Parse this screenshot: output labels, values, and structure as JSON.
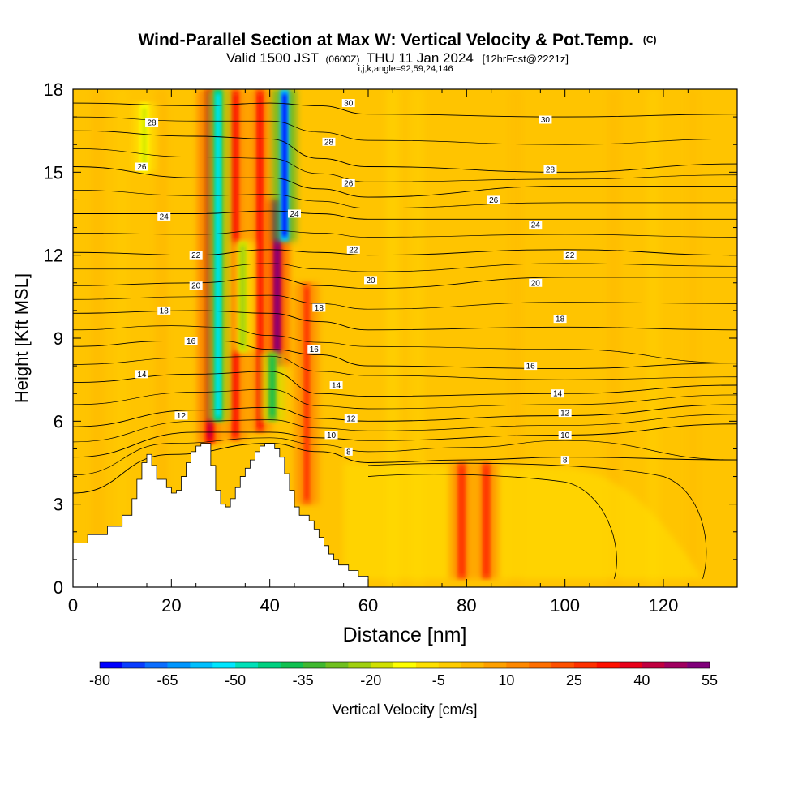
{
  "chart_data": {
    "type": "heatmap",
    "title": "Wind-Parallel Section at Max W: Vertical Velocity & Pot.Temp.",
    "title_mark": "(C)",
    "subtitle": {
      "valid": "Valid 1500 JST",
      "zulu": "(0600Z)",
      "date": "THU 11 Jan 2024",
      "fcst": "[12hrFcst@2221z]"
    },
    "indices": "i,j,k,angle=92,59,24,146",
    "xlabel": "Distance [nm]",
    "ylabel": "Height [Kft MSL]",
    "xlim": [
      0,
      135
    ],
    "ylim": [
      0,
      18
    ],
    "xticks": [
      0,
      20,
      40,
      60,
      80,
      100,
      120
    ],
    "yticks": [
      0,
      3,
      6,
      9,
      12,
      15,
      18
    ],
    "colorbar": {
      "label": "Vertical Velocity [cm/s]",
      "ticks": [
        -80,
        -65,
        -50,
        -35,
        -20,
        -5,
        10,
        25,
        40,
        55
      ],
      "min": -80,
      "max": 55,
      "step": 5,
      "colors": [
        "#0000ff",
        "#0a3dff",
        "#0c6eff",
        "#0096ff",
        "#00bfff",
        "#00e6ff",
        "#00e0b8",
        "#00d080",
        "#10c050",
        "#40b830",
        "#70c020",
        "#a0d010",
        "#d0e000",
        "#ffff00",
        "#ffe000",
        "#ffcc00",
        "#ffb800",
        "#ffa000",
        "#ff8800",
        "#ff6e00",
        "#ff5000",
        "#ff3000",
        "#ff1000",
        "#e8001a",
        "#c00040",
        "#a00060",
        "#80007a"
      ]
    },
    "terrain": [
      [
        0,
        1.6
      ],
      [
        3,
        1.9
      ],
      [
        7,
        2.2
      ],
      [
        10,
        2.6
      ],
      [
        12,
        3.2
      ],
      [
        13,
        3.9
      ],
      [
        14,
        4.5
      ],
      [
        15,
        4.8
      ],
      [
        16,
        4.4
      ],
      [
        17,
        3.9
      ],
      [
        19,
        3.6
      ],
      [
        20,
        3.4
      ],
      [
        21,
        3.5
      ],
      [
        22,
        4.0
      ],
      [
        23,
        4.5
      ],
      [
        24,
        4.9
      ],
      [
        25,
        5.1
      ],
      [
        26,
        5.2
      ],
      [
        27,
        5.2
      ],
      [
        28,
        4.4
      ],
      [
        29,
        3.5
      ],
      [
        30,
        3.0
      ],
      [
        31,
        2.9
      ],
      [
        32,
        3.2
      ],
      [
        33,
        3.6
      ],
      [
        34,
        4.0
      ],
      [
        35,
        4.3
      ],
      [
        36,
        4.6
      ],
      [
        37,
        4.9
      ],
      [
        38,
        5.1
      ],
      [
        39,
        5.2
      ],
      [
        40,
        5.2
      ],
      [
        41,
        5.0
      ],
      [
        42,
        4.7
      ],
      [
        43,
        4.1
      ],
      [
        44,
        3.5
      ],
      [
        45,
        2.9
      ],
      [
        46,
        2.6
      ],
      [
        47,
        2.6
      ],
      [
        48,
        2.4
      ],
      [
        49,
        2.1
      ],
      [
        50,
        1.8
      ],
      [
        51,
        1.5
      ],
      [
        52,
        1.2
      ],
      [
        53,
        1.0
      ],
      [
        54,
        0.8
      ],
      [
        56,
        0.6
      ],
      [
        58,
        0.4
      ],
      [
        60,
        0.3
      ]
    ],
    "updraft_bands": [
      {
        "x": 27.8,
        "ztop": 18,
        "zbot": 5.2,
        "w": 40
      },
      {
        "x": 33.0,
        "ztop": 18,
        "zbot": 5.3,
        "w": 30
      },
      {
        "x": 38.0,
        "ztop": 18,
        "zbot": 5.6,
        "w": 30
      },
      {
        "x": 41.5,
        "ztop": 14.0,
        "zbot": 8.0,
        "w": 55
      },
      {
        "x": 47.5,
        "ztop": 11.0,
        "zbot": 3.0,
        "w": 25
      },
      {
        "x": 79.0,
        "ztop": 4.5,
        "zbot": 0.3,
        "w": 28
      },
      {
        "x": 84.0,
        "ztop": 4.5,
        "zbot": 0.3,
        "w": 28
      }
    ],
    "downdraft_bands": [
      {
        "x": 29.5,
        "ztop": 18,
        "zbot": 6.0,
        "w": -55
      },
      {
        "x": 43.0,
        "ztop": 18,
        "zbot": 12.5,
        "w": -80
      },
      {
        "x": 40.5,
        "ztop": 8.5,
        "zbot": 6.0,
        "w": -40
      },
      {
        "x": 14.5,
        "ztop": 17.5,
        "zbot": 15.0,
        "w": -20
      },
      {
        "x": 34.5,
        "ztop": 12.5,
        "zbot": 8.5,
        "w": -25
      }
    ],
    "isentropes": [
      {
        "level": 8,
        "profile": [
          [
            0,
            3.4
          ],
          [
            20,
            4.8
          ],
          [
            40,
            5.2
          ],
          [
            50,
            4.9
          ],
          [
            60,
            4.5
          ],
          [
            80,
            4.6
          ],
          [
            100,
            4.7
          ],
          [
            135,
            4.6
          ]
        ]
      },
      {
        "level": 10,
        "profile": [
          [
            0,
            4.7
          ],
          [
            25,
            5.6
          ],
          [
            40,
            5.6
          ],
          [
            50,
            5.4
          ],
          [
            60,
            5.3
          ],
          [
            100,
            5.5
          ],
          [
            135,
            5.9
          ]
        ]
      },
      {
        "level": 12,
        "profile": [
          [
            0,
            5.8
          ],
          [
            25,
            6.4
          ],
          [
            40,
            6.5
          ],
          [
            50,
            6.1
          ],
          [
            60,
            6.0
          ],
          [
            100,
            6.2
          ],
          [
            135,
            6.6
          ]
        ]
      },
      {
        "level": 14,
        "profile": [
          [
            0,
            7.4
          ],
          [
            25,
            7.7
          ],
          [
            40,
            7.8
          ],
          [
            50,
            7.0
          ],
          [
            60,
            6.9
          ],
          [
            100,
            7.0
          ],
          [
            135,
            7.3
          ]
        ]
      },
      {
        "level": 16,
        "profile": [
          [
            0,
            8.7
          ],
          [
            20,
            8.9
          ],
          [
            30,
            8.9
          ],
          [
            40,
            8.6
          ],
          [
            50,
            8.4
          ],
          [
            60,
            8.0
          ],
          [
            100,
            7.9
          ],
          [
            135,
            8.1
          ]
        ]
      },
      {
        "level": 18,
        "profile": [
          [
            0,
            9.9
          ],
          [
            25,
            10.0
          ],
          [
            40,
            9.9
          ],
          [
            50,
            9.6
          ],
          [
            60,
            9.3
          ],
          [
            100,
            9.4
          ],
          [
            135,
            9.3
          ]
        ]
      },
      {
        "level": 20,
        "profile": [
          [
            0,
            10.9
          ],
          [
            25,
            11.0
          ],
          [
            40,
            11.2
          ],
          [
            50,
            10.9
          ],
          [
            60,
            10.8
          ],
          [
            100,
            11.2
          ],
          [
            135,
            11.2
          ]
        ]
      },
      {
        "level": 22,
        "profile": [
          [
            0,
            12.1
          ],
          [
            25,
            12.0
          ],
          [
            40,
            12.2
          ],
          [
            50,
            12.1
          ],
          [
            60,
            12.0
          ],
          [
            100,
            12.2
          ],
          [
            135,
            12.0
          ]
        ]
      },
      {
        "level": 24,
        "profile": [
          [
            0,
            13.5
          ],
          [
            25,
            13.5
          ],
          [
            40,
            13.6
          ],
          [
            50,
            13.5
          ],
          [
            60,
            13.3
          ],
          [
            100,
            13.3
          ],
          [
            135,
            13.3
          ]
        ]
      },
      {
        "level": 26,
        "profile": [
          [
            0,
            15.2
          ],
          [
            25,
            14.8
          ],
          [
            40,
            14.8
          ],
          [
            50,
            14.4
          ],
          [
            60,
            14.1
          ],
          [
            100,
            14.5
          ],
          [
            135,
            14.5
          ]
        ]
      },
      {
        "level": 28,
        "profile": [
          [
            0,
            16.5
          ],
          [
            25,
            16.3
          ],
          [
            40,
            16.2
          ],
          [
            50,
            15.5
          ],
          [
            60,
            15.2
          ],
          [
            100,
            15.0
          ],
          [
            135,
            15.3
          ]
        ]
      },
      {
        "level": 30,
        "profile": [
          [
            0,
            17.5
          ],
          [
            25,
            17.4
          ],
          [
            40,
            17.5
          ],
          [
            50,
            17.4
          ],
          [
            60,
            17.1
          ],
          [
            100,
            17.0
          ],
          [
            135,
            17.1
          ]
        ]
      }
    ],
    "isentrope_labels": [
      {
        "text": "28",
        "x": 16,
        "y": 16.8
      },
      {
        "text": "26",
        "x": 14,
        "y": 15.2
      },
      {
        "text": "24",
        "x": 18.5,
        "y": 13.4
      },
      {
        "text": "22",
        "x": 25,
        "y": 12.0
      },
      {
        "text": "20",
        "x": 25,
        "y": 10.9
      },
      {
        "text": "18",
        "x": 18.5,
        "y": 10.0
      },
      {
        "text": "16",
        "x": 24,
        "y": 8.9
      },
      {
        "text": "14",
        "x": 14,
        "y": 7.7
      },
      {
        "text": "12",
        "x": 22,
        "y": 6.2
      },
      {
        "text": "30",
        "x": 56,
        "y": 17.5
      },
      {
        "text": "28",
        "x": 52,
        "y": 16.1
      },
      {
        "text": "26",
        "x": 56,
        "y": 14.6
      },
      {
        "text": "24",
        "x": 45,
        "y": 13.5
      },
      {
        "text": "22",
        "x": 57,
        "y": 12.2
      },
      {
        "text": "20",
        "x": 60.5,
        "y": 11.1
      },
      {
        "text": "18",
        "x": 50,
        "y": 10.1
      },
      {
        "text": "16",
        "x": 49,
        "y": 8.6
      },
      {
        "text": "14",
        "x": 53.5,
        "y": 7.3
      },
      {
        "text": "12",
        "x": 56.5,
        "y": 6.1
      },
      {
        "text": "10",
        "x": 52.5,
        "y": 5.5
      },
      {
        "text": "8",
        "x": 56,
        "y": 4.9
      },
      {
        "text": "30",
        "x": 96,
        "y": 16.9
      },
      {
        "text": "28",
        "x": 97,
        "y": 15.1
      },
      {
        "text": "26",
        "x": 85.5,
        "y": 14.0
      },
      {
        "text": "24",
        "x": 94,
        "y": 13.1
      },
      {
        "text": "22",
        "x": 101,
        "y": 12.0
      },
      {
        "text": "20",
        "x": 94,
        "y": 11.0
      },
      {
        "text": "18",
        "x": 99,
        "y": 9.7
      },
      {
        "text": "16",
        "x": 93,
        "y": 8.0
      },
      {
        "text": "14",
        "x": 98.5,
        "y": 7.0
      },
      {
        "text": "12",
        "x": 100,
        "y": 6.3
      },
      {
        "text": "10",
        "x": 100,
        "y": 5.5
      },
      {
        "text": "8",
        "x": 100,
        "y": 4.6
      }
    ]
  }
}
